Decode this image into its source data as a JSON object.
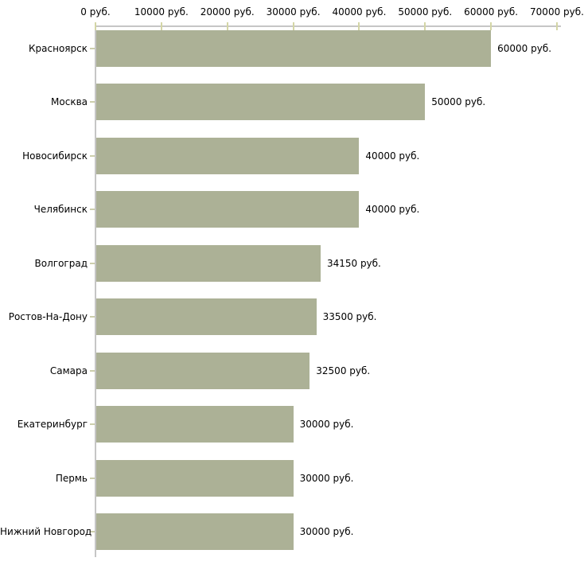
{
  "chart_data": {
    "type": "bar",
    "orientation": "horizontal",
    "xlim": [
      0,
      70000
    ],
    "grid": false,
    "legend": false,
    "x_ticks": [
      {
        "value": 0,
        "label": "0 руб."
      },
      {
        "value": 10000,
        "label": "10000 руб."
      },
      {
        "value": 20000,
        "label": "20000 руб."
      },
      {
        "value": 30000,
        "label": "30000 руб."
      },
      {
        "value": 40000,
        "label": "40000 руб."
      },
      {
        "value": 50000,
        "label": "50000 руб."
      },
      {
        "value": 60000,
        "label": "60000 руб."
      },
      {
        "value": 70000,
        "label": "70000 руб."
      }
    ],
    "categories": [
      "Красноярск",
      "Москва",
      "Новосибирск",
      "Челябинск",
      "Волгоград",
      "Ростов-На-Дону",
      "Самара",
      "Екатеринбург",
      "Пермь",
      "Нижний Новгород"
    ],
    "values": [
      60000,
      50000,
      40000,
      40000,
      34150,
      33500,
      32500,
      30000,
      30000,
      30000
    ],
    "value_labels": [
      "60000 руб.",
      "50000 руб.",
      "40000 руб.",
      "40000 руб.",
      "34150 руб.",
      "33500 руб.",
      "32500 руб.",
      "30000 руб.",
      "30000 руб.",
      "30000 руб."
    ],
    "colors": {
      "bar": "#acb196",
      "axis": "#c6c6c6",
      "x_tick": "#d4d6a6",
      "category_tick": "#ccceac",
      "text": "#000000",
      "background": "#ffffff"
    }
  }
}
